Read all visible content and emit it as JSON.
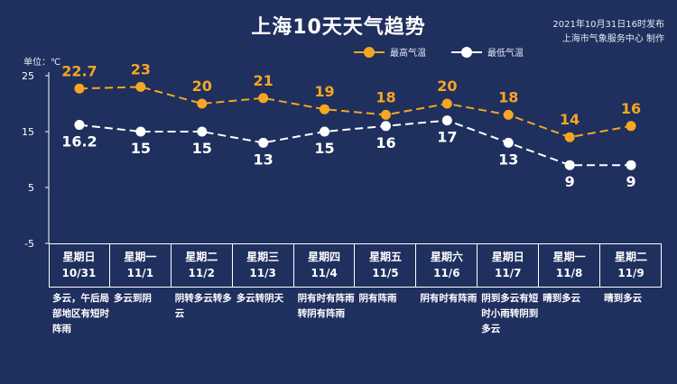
{
  "header": {
    "title": "上海10天天气趋势",
    "publish_time": "2021年10月31日16时发布",
    "producer": "上海市气象服务中心 制作",
    "unit": "单位：℃"
  },
  "legend": {
    "high_label": "最高气温",
    "low_label": "最低气温"
  },
  "colors": {
    "background": "#1f2f5e",
    "high": "#f5a623",
    "low": "#ffffff"
  },
  "chart_data": {
    "type": "line",
    "ylim": [
      -5,
      25
    ],
    "yticks": [
      25,
      15,
      5,
      -5
    ],
    "grid": false,
    "legend_position": "top-center",
    "categories": [
      "10/31",
      "11/1",
      "11/2",
      "11/3",
      "11/4",
      "11/5",
      "11/6",
      "11/7",
      "11/8",
      "11/9"
    ],
    "series": [
      {
        "name": "最高气温",
        "labels": [
          "22.7",
          "23",
          "20",
          "21",
          "19",
          "18",
          "20",
          "18",
          "14",
          "16"
        ],
        "values": [
          22.7,
          23,
          20,
          21,
          19,
          18,
          20,
          18,
          14,
          16
        ]
      },
      {
        "name": "最低气温",
        "labels": [
          "16.2",
          "15",
          "15",
          "13",
          "15",
          "16",
          "17",
          "13",
          "9",
          "9"
        ],
        "values": [
          16.2,
          15,
          15,
          13,
          15,
          16,
          17,
          13,
          9,
          9
        ]
      }
    ]
  },
  "days": [
    {
      "weekday": "星期日",
      "date": "10/31",
      "weather": "多云，午后局部地区有短时阵雨"
    },
    {
      "weekday": "星期一",
      "date": "11/1",
      "weather": "多云到阴"
    },
    {
      "weekday": "星期二",
      "date": "11/2",
      "weather": "阴转多云转多云"
    },
    {
      "weekday": "星期三",
      "date": "11/3",
      "weather": "多云转阴天"
    },
    {
      "weekday": "星期四",
      "date": "11/4",
      "weather": "阴有时有阵雨转阴有阵雨"
    },
    {
      "weekday": "星期五",
      "date": "11/5",
      "weather": "阴有阵雨"
    },
    {
      "weekday": "星期六",
      "date": "11/6",
      "weather": "阴有时有阵雨"
    },
    {
      "weekday": "星期日",
      "date": "11/7",
      "weather": "阴到多云有短时小雨转阴到多云"
    },
    {
      "weekday": "星期一",
      "date": "11/8",
      "weather": "晴到多云"
    },
    {
      "weekday": "星期二",
      "date": "11/9",
      "weather": "晴到多云"
    }
  ]
}
